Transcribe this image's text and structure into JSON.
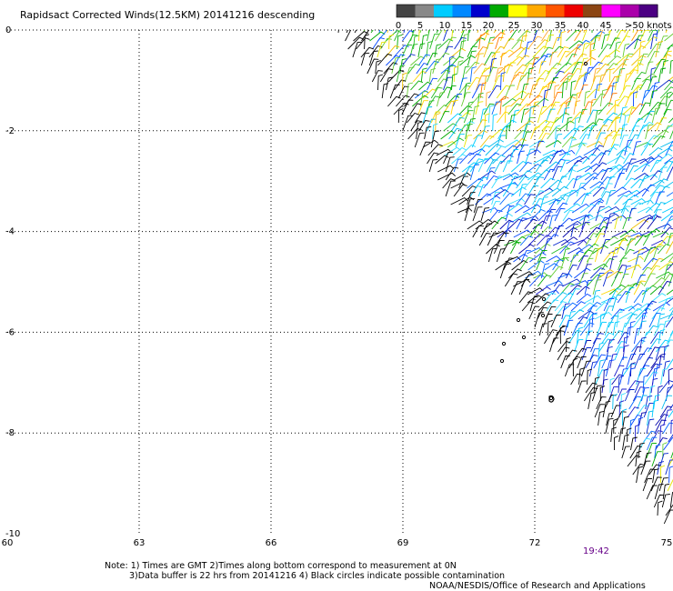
{
  "title": "Rapidsact Corrected Winds(12.5KM) 20141216 descending",
  "legend": {
    "labels": [
      "0",
      "5",
      "10",
      "15",
      "20",
      "25",
      "30",
      "35",
      "40",
      "45",
      ">50 knots"
    ],
    "colors": [
      "#444444",
      "#888888",
      "#00ccff",
      "#0088ff",
      "#0000cc",
      "#00aa00",
      "#ffff00",
      "#ffaa00",
      "#ff5500",
      "#ee0000",
      "#8b4513",
      "#ff00ff",
      "#aa00aa",
      "#4b0082"
    ]
  },
  "axes": {
    "x_ticks": [
      "60",
      "63",
      "66",
      "69",
      "72",
      "75"
    ],
    "y_ticks": [
      "0",
      "-2",
      "-4",
      "-6",
      "-8",
      "-10"
    ]
  },
  "timestamp": "19:42",
  "notes": {
    "line1": "Note: 1) Times are GMT 2)Times along bottom correspond to measurement at 0N",
    "line2": "3)Data buffer is 22 hrs from 20141216 4) Black circles indicate possible contamination",
    "credit": "NOAA/NESDIS/Office of Research and Applications"
  },
  "chart_data": {
    "type": "map",
    "title": "Rapidsact Corrected Winds(12.5KM) 20141216 descending",
    "xlim": [
      60,
      75
    ],
    "ylim": [
      -10,
      0
    ],
    "x_ticks": [
      60,
      63,
      66,
      69,
      72,
      75
    ],
    "y_ticks": [
      0,
      -2,
      -4,
      -6,
      -8,
      -10
    ],
    "grid": true,
    "legend_placement": "top-right"
  }
}
